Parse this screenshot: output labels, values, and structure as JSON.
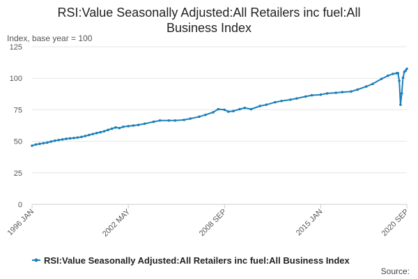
{
  "chart_data": {
    "type": "line",
    "title": "RSI:Value Seasonally Adjusted:All Retailers inc fuel:All Business Index",
    "title_lines": [
      "RSI:Value Seasonally Adjusted:All Retailers inc fuel:All",
      "Business Index"
    ],
    "ylabel": "Index, base year = 100",
    "ylim": [
      0,
      125
    ],
    "yticks": [
      0,
      25,
      50,
      75,
      100,
      125
    ],
    "xrange": [
      "1996-01",
      "2020-09"
    ],
    "xticks": [
      {
        "label": "1996 JAN",
        "date": "1996-01"
      },
      {
        "label": "2002 MAY",
        "date": "2002-05"
      },
      {
        "label": "2008 SEP",
        "date": "2008-09"
      },
      {
        "label": "2015 JAN",
        "date": "2015-01"
      },
      {
        "label": "2020 SEP",
        "date": "2020-09"
      }
    ],
    "grid": true,
    "legend_position": "bottom",
    "series": [
      {
        "name": "RSI:Value Seasonally Adjusted:All Retailers inc fuel:All Business Index",
        "color": "#1a7fb8",
        "points": [
          [
            "1996-01",
            46.5
          ],
          [
            "1996-04",
            47.5
          ],
          [
            "1996-07",
            48.0
          ],
          [
            "1996-10",
            48.5
          ],
          [
            "1997-01",
            49.0
          ],
          [
            "1997-04",
            49.8
          ],
          [
            "1997-07",
            50.5
          ],
          [
            "1997-10",
            51.0
          ],
          [
            "1998-01",
            51.5
          ],
          [
            "1998-04",
            52.0
          ],
          [
            "1998-07",
            52.3
          ],
          [
            "1998-10",
            52.6
          ],
          [
            "1999-01",
            53.0
          ],
          [
            "1999-04",
            53.5
          ],
          [
            "1999-07",
            54.2
          ],
          [
            "1999-10",
            55.0
          ],
          [
            "2000-01",
            55.8
          ],
          [
            "2000-04",
            56.5
          ],
          [
            "2000-07",
            57.2
          ],
          [
            "2000-10",
            58.0
          ],
          [
            "2001-01",
            59.0
          ],
          [
            "2001-04",
            60.0
          ],
          [
            "2001-07",
            61.0
          ],
          [
            "2001-10",
            60.5
          ],
          [
            "2002-01",
            61.5
          ],
          [
            "2002-05",
            62.0
          ],
          [
            "2002-09",
            62.5
          ],
          [
            "2003-01",
            63.0
          ],
          [
            "2003-06",
            64.0
          ],
          [
            "2004-01",
            65.5
          ],
          [
            "2004-06",
            66.5
          ],
          [
            "2005-01",
            66.5
          ],
          [
            "2005-06",
            66.5
          ],
          [
            "2006-01",
            67.0
          ],
          [
            "2006-06",
            68.0
          ],
          [
            "2007-01",
            69.5
          ],
          [
            "2007-06",
            71.0
          ],
          [
            "2007-12",
            73.0
          ],
          [
            "2008-04",
            75.5
          ],
          [
            "2008-09",
            75.0
          ],
          [
            "2008-12",
            73.5
          ],
          [
            "2009-04",
            74.0
          ],
          [
            "2009-09",
            75.5
          ],
          [
            "2010-01",
            76.5
          ],
          [
            "2010-06",
            75.5
          ],
          [
            "2011-01",
            78.0
          ],
          [
            "2011-06",
            79.0
          ],
          [
            "2012-01",
            81.0
          ],
          [
            "2012-06",
            82.0
          ],
          [
            "2013-01",
            83.0
          ],
          [
            "2013-06",
            84.0
          ],
          [
            "2014-01",
            85.5
          ],
          [
            "2014-06",
            86.5
          ],
          [
            "2015-01",
            87.0
          ],
          [
            "2015-06",
            88.0
          ],
          [
            "2016-01",
            88.5
          ],
          [
            "2016-06",
            89.0
          ],
          [
            "2017-01",
            89.5
          ],
          [
            "2017-06",
            91.0
          ],
          [
            "2018-01",
            93.5
          ],
          [
            "2018-06",
            95.5
          ],
          [
            "2019-01",
            99.5
          ],
          [
            "2019-06",
            102.0
          ],
          [
            "2019-10",
            103.5
          ],
          [
            "2020-01",
            104.0
          ],
          [
            "2020-02",
            104.0
          ],
          [
            "2020-03",
            98.0
          ],
          [
            "2020-04",
            79.0
          ],
          [
            "2020-05",
            88.0
          ],
          [
            "2020-06",
            100.5
          ],
          [
            "2020-07",
            105.0
          ],
          [
            "2020-08",
            106.0
          ],
          [
            "2020-09",
            107.5
          ]
        ]
      }
    ]
  },
  "source_label": "Source:"
}
